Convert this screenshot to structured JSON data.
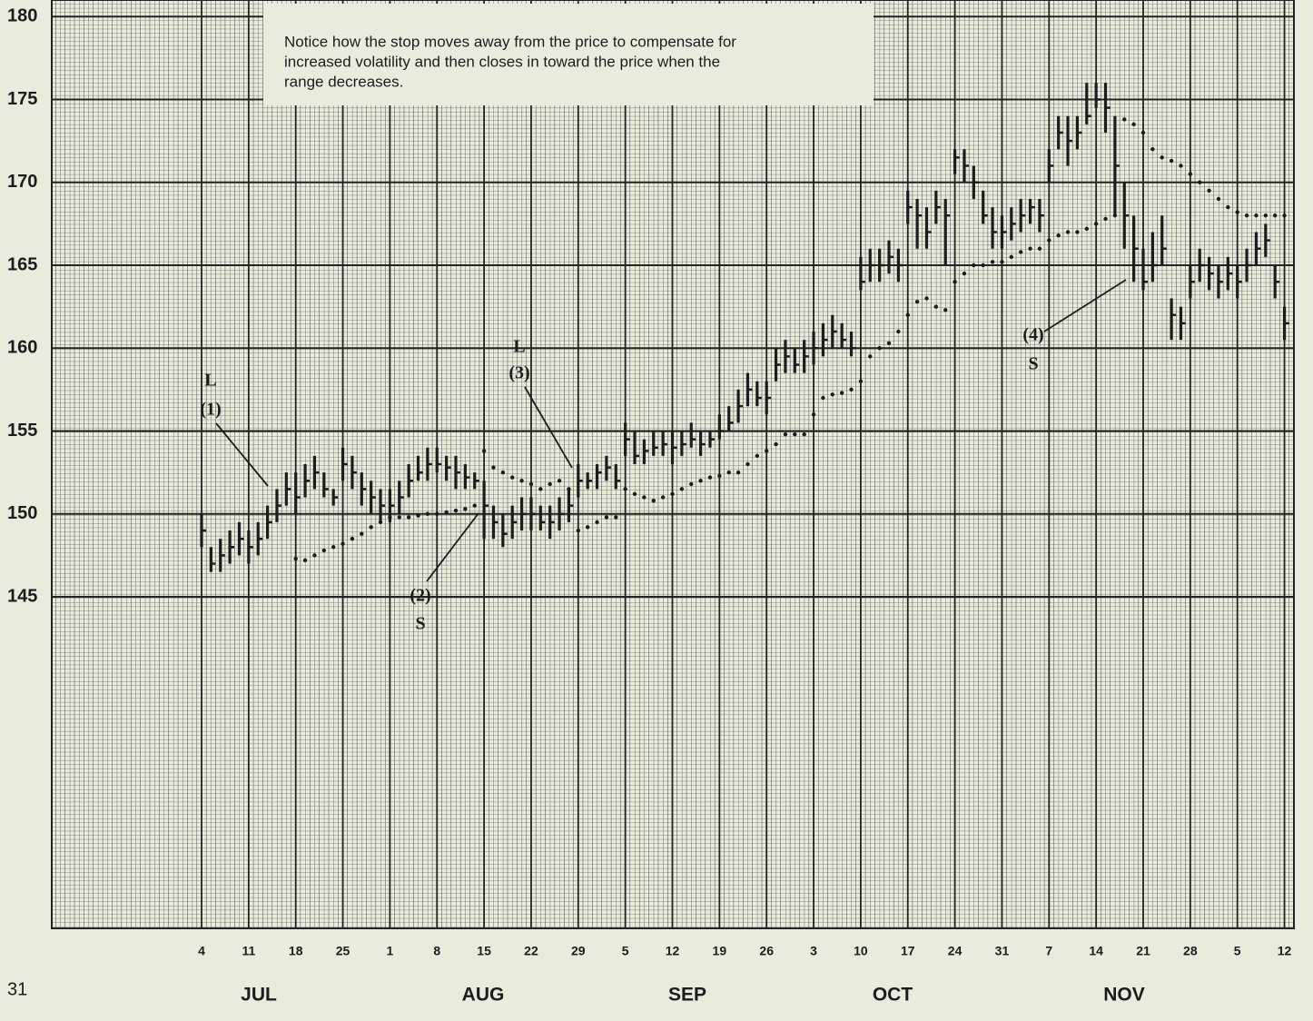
{
  "chart_data": {
    "type": "hlc",
    "note": [
      "Notice how the stop moves away from the price to compensate for",
      "increased volatility and then closes in toward the price when the",
      "range decreases."
    ],
    "page_number": "31",
    "months": [
      "JUL",
      "AUG",
      "SEP",
      "OCT",
      "NOV"
    ],
    "categories": [
      "4",
      null,
      null,
      null,
      null,
      "11",
      null,
      null,
      null,
      null,
      "18",
      null,
      null,
      null,
      null,
      "25",
      null,
      null,
      null,
      null,
      "1",
      null,
      null,
      null,
      null,
      "8",
      null,
      null,
      null,
      null,
      "15",
      null,
      null,
      null,
      null,
      "22",
      null,
      null,
      null,
      null,
      "29",
      null,
      null,
      null,
      null,
      "5",
      null,
      null,
      null,
      null,
      "12",
      null,
      null,
      null,
      null,
      "19",
      null,
      null,
      null,
      null,
      "26",
      null,
      null,
      null,
      null,
      "3",
      null,
      null,
      null,
      null,
      "10",
      null,
      null,
      null,
      null,
      "17",
      null,
      null,
      null,
      null,
      "24",
      null,
      null,
      null,
      null,
      "31",
      null,
      null,
      null,
      null,
      "7",
      null,
      null,
      null,
      null,
      "14",
      null,
      null,
      null,
      null,
      "21",
      null,
      null,
      null,
      null,
      "28",
      null,
      null,
      null,
      null,
      "5",
      null,
      null,
      null,
      null,
      "12"
    ],
    "high": [
      150,
      148,
      148.5,
      149,
      149.5,
      149,
      149.5,
      150.5,
      151.5,
      152.5,
      152.5,
      153,
      153.5,
      152.5,
      151.5,
      154,
      153.5,
      152.5,
      152,
      151.5,
      151.5,
      152,
      153,
      153.5,
      154,
      154,
      153.5,
      153.5,
      153,
      152.5,
      152,
      150.5,
      150,
      150.5,
      151,
      151,
      150.5,
      150.5,
      151,
      151.5,
      153,
      152.5,
      153,
      153.5,
      153,
      155.5,
      155,
      154.5,
      155,
      155,
      155,
      155,
      155.5,
      155,
      155,
      156,
      156.5,
      157.5,
      158.5,
      158,
      158,
      160,
      160.5,
      160,
      160.5,
      161,
      161.5,
      162,
      161.5,
      161,
      165.5,
      166,
      166,
      166.5,
      166,
      169.5,
      169,
      168.5,
      169.5,
      169,
      172,
      172,
      171,
      169.5,
      168.5,
      168,
      168.5,
      169,
      169,
      169,
      172,
      174,
      174,
      174,
      176,
      176,
      176,
      174,
      170,
      168,
      166,
      167,
      168,
      163,
      162.5,
      165,
      166,
      165.5,
      165,
      165.5,
      165,
      166,
      167,
      167.5,
      165,
      162.5
    ],
    "low": [
      148,
      146.5,
      146.5,
      147,
      147.5,
      147,
      147.5,
      148.5,
      149.5,
      150.5,
      150,
      151,
      151.5,
      151,
      150.5,
      152,
      151.5,
      150.5,
      150,
      149.5,
      149.5,
      150,
      151,
      152,
      152,
      152.5,
      152,
      151.5,
      151.5,
      151.5,
      148.5,
      148.5,
      148,
      148.5,
      149,
      149,
      149,
      148.5,
      149,
      149.5,
      151,
      151.5,
      151.5,
      152,
      151.5,
      153.5,
      153,
      153,
      153.5,
      153.5,
      153,
      153.5,
      154,
      153.5,
      154,
      154.5,
      155,
      155.5,
      156.5,
      156.5,
      156,
      158,
      158.5,
      158.5,
      158.5,
      159,
      159.5,
      160,
      160,
      159.5,
      163.5,
      164,
      164,
      164.5,
      164,
      167.5,
      166,
      166,
      167.5,
      165,
      170.5,
      170,
      169,
      167.5,
      166,
      166,
      166.5,
      167,
      167.5,
      167,
      170,
      172,
      171,
      172,
      173.5,
      174.5,
      173,
      168,
      166,
      164,
      163.5,
      164,
      165,
      160.5,
      160.5,
      163,
      164,
      163.5,
      163,
      163.5,
      163,
      164,
      165,
      165.5,
      163,
      160.5
    ],
    "close": [
      149,
      147,
      147.5,
      148,
      148.5,
      148,
      148.5,
      149.5,
      150.5,
      151.5,
      151,
      152,
      152.5,
      151.5,
      151,
      153,
      152.5,
      151.5,
      151,
      150.5,
      150.5,
      151,
      152,
      152.5,
      153,
      153,
      152.8,
      152.5,
      152.2,
      152,
      150.5,
      149.5,
      148.8,
      149.5,
      150,
      150,
      149.5,
      149.5,
      150,
      150.5,
      152,
      152,
      152.5,
      152.8,
      152,
      154.5,
      153.5,
      153.8,
      154,
      154.2,
      154,
      154.2,
      154.5,
      154.2,
      154.5,
      155,
      155.5,
      156.5,
      157.5,
      157,
      157,
      159,
      159.5,
      159,
      159.5,
      160,
      160.5,
      161,
      160.5,
      160,
      164,
      165,
      165,
      165.5,
      165,
      168.5,
      168,
      167,
      168.5,
      168,
      171.5,
      171,
      170,
      168,
      167,
      167,
      167.5,
      168,
      168.5,
      168,
      171,
      173,
      172.5,
      173,
      174,
      175,
      174.5,
      171,
      168,
      166,
      164,
      165,
      166,
      162,
      161.5,
      164,
      165,
      164.5,
      164,
      164.5,
      164,
      165,
      166,
      166.5,
      164,
      161.5
    ],
    "stops": [
      null,
      null,
      null,
      null,
      null,
      null,
      null,
      null,
      null,
      null,
      147.3,
      147.2,
      147.5,
      147.8,
      148,
      148.2,
      148.5,
      148.8,
      149.2,
      149.5,
      149.8,
      149.8,
      149.8,
      149.9,
      150,
      150,
      150.1,
      150.2,
      150.3,
      150.5,
      153.8,
      152.8,
      152.5,
      152.2,
      152,
      151.8,
      151.5,
      151.8,
      152,
      151.5,
      149,
      149.2,
      149.5,
      149.8,
      149.8,
      151.5,
      151.2,
      151,
      150.8,
      151,
      151.2,
      151.5,
      151.8,
      152,
      152.2,
      152.3,
      152.5,
      152.5,
      153,
      153.5,
      153.8,
      154.2,
      154.8,
      154.8,
      154.8,
      156,
      157,
      157.2,
      157.3,
      157.5,
      158,
      159.5,
      160,
      160.3,
      161,
      162,
      162.8,
      163,
      162.5,
      162.3,
      164,
      164.5,
      165,
      165,
      165.2,
      165.2,
      165.5,
      165.8,
      166,
      166,
      166.5,
      166.8,
      167,
      167,
      167.2,
      167.5,
      167.8,
      168,
      173.8,
      173.5,
      173,
      172,
      171.5,
      171.3,
      171,
      170.5,
      170,
      169.5,
      169,
      168.5,
      168.2,
      168,
      168,
      168,
      168,
      168
    ],
    "annotations": [
      [
        "L",
        "(1)"
      ],
      [
        "(2)",
        "S"
      ],
      [
        "L",
        "(3)"
      ],
      [
        "(4)",
        "S"
      ]
    ],
    "ylim": [
      125,
      181
    ],
    "yticks": [
      145,
      150,
      155,
      160,
      165,
      170,
      175,
      180
    ],
    "grid": true,
    "color": "#1c1c1c"
  }
}
